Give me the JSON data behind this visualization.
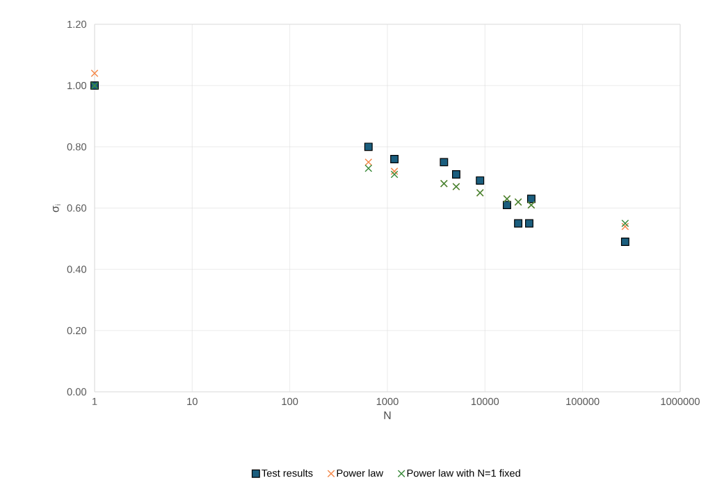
{
  "chart_data": {
    "type": "scatter",
    "xlabel": "N",
    "ylabel": "σ$_{i}$",
    "log": "x",
    "xlim": [
      1,
      1000000
    ],
    "xticks": [
      1,
      10,
      100,
      1000,
      10000,
      100000,
      1000000
    ],
    "ylim": [
      0,
      1.2
    ],
    "yticks": [
      {
        "value": 0,
        "label": "0.00"
      },
      {
        "value": 0.2,
        "label": "0.20"
      },
      {
        "value": 0.4,
        "label": "0.40"
      },
      {
        "value": 0.6,
        "label": "0.60"
      },
      {
        "value": 0.8,
        "label": "0.80"
      },
      {
        "value": 1.0,
        "label": "1.00"
      },
      {
        "value": 1.2,
        "label": "1.20"
      }
    ],
    "grid": true,
    "legend": "bottom",
    "x": [
      1,
      640,
      1180,
      3800,
      5070,
      8900,
      16800,
      21900,
      28400,
      29800,
      273000
    ],
    "series": [
      {
        "name": "Test results",
        "color": "#1b5e7e",
        "marker": "square",
        "values": [
          1.0,
          0.8,
          0.76,
          0.75,
          0.71,
          0.69,
          0.61,
          0.55,
          0.55,
          0.63,
          0.49
        ]
      },
      {
        "name": "Power law",
        "color": "#f4894b",
        "marker": "cross",
        "values": [
          1.04,
          0.75,
          0.72,
          0.68,
          0.67,
          0.65,
          0.63,
          0.62,
          null,
          0.61,
          0.54
        ]
      },
      {
        "name": "Power law with N=1 fixed",
        "color": "#3a8a3a",
        "marker": "cross",
        "values": [
          1.0,
          0.73,
          0.71,
          0.68,
          0.67,
          0.65,
          0.63,
          0.62,
          null,
          0.61,
          0.55
        ]
      }
    ]
  }
}
